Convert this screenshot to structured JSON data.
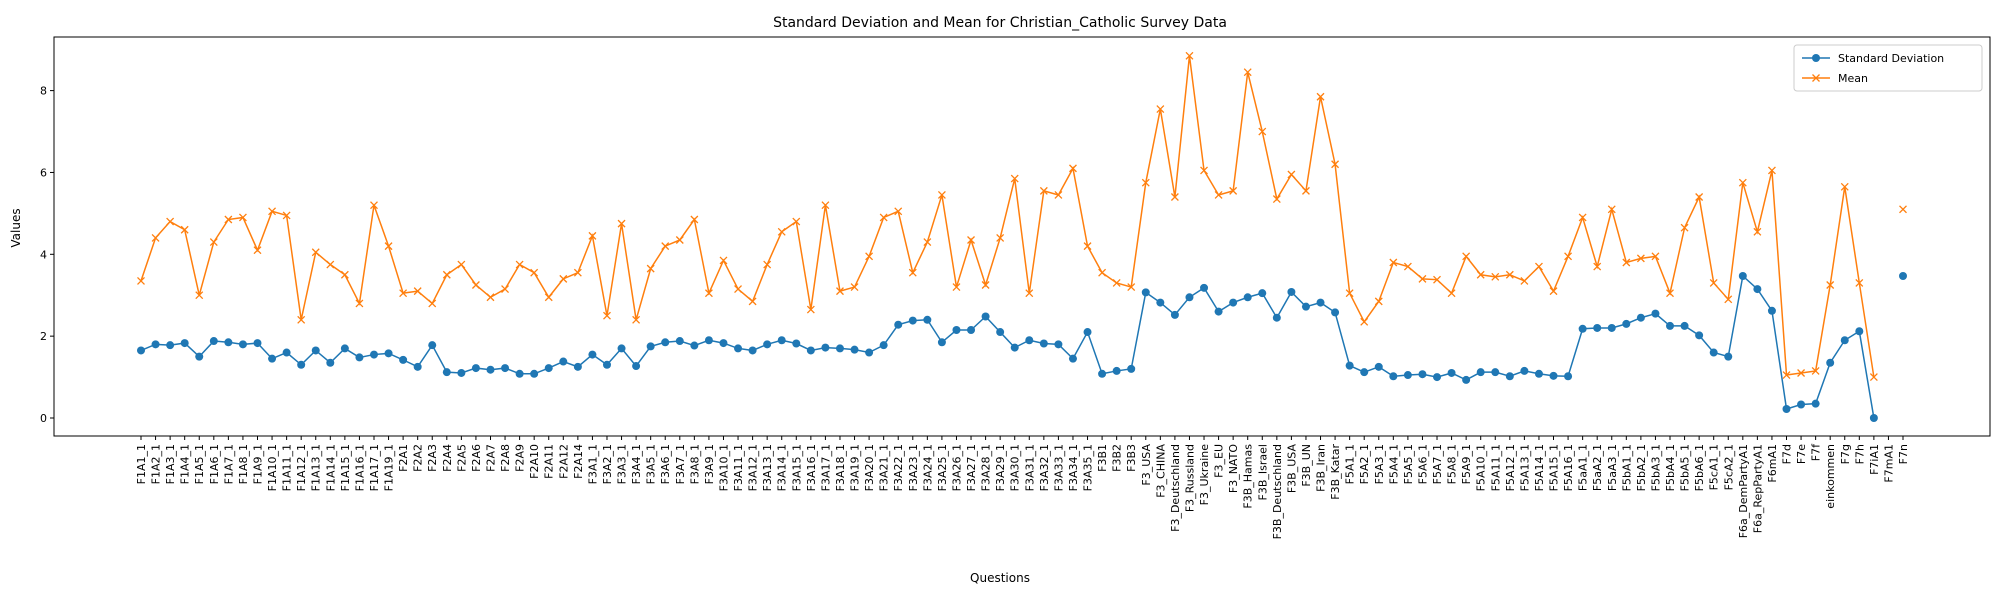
{
  "chart_data": {
    "type": "line",
    "title": "Standard Deviation and Mean for Christian_Catholic Survey Data",
    "xlabel": "Questions",
    "ylabel": "Values",
    "categories": [
      "F1A1_1",
      "F1A2_1",
      "F1A3_1",
      "F1A4_1",
      "F1A5_1",
      "F1A6_1",
      "F1A7_1",
      "F1A8_1",
      "F1A9_1",
      "F1A10_1",
      "F1A11_1",
      "F1A12_1",
      "F1A13_1",
      "F1A14_1",
      "F1A15_1",
      "F1A16_1",
      "F1A17_1",
      "F1A19_1",
      "F2A1",
      "F2A2",
      "F2A3",
      "F2A4",
      "F2A5",
      "F2A6",
      "F2A7",
      "F2A8",
      "F2A9",
      "F2A10",
      "F2A11",
      "F2A12",
      "F2A14",
      "F3A1_1",
      "F3A2_1",
      "F3A3_1",
      "F3A4_1",
      "F3A5_1",
      "F3A6_1",
      "F3A7_1",
      "F3A8_1",
      "F3A9_1",
      "F3A10_1",
      "F3A11_1",
      "F3A12_1",
      "F3A13_1",
      "F3A14_1",
      "F3A15_1",
      "F3A16_1",
      "F3A17_1",
      "F3A18_1",
      "F3A19_1",
      "F3A20_1",
      "F3A21_1",
      "F3A22_1",
      "F3A23_1",
      "F3A24_1",
      "F3A25_1",
      "F3A26_1",
      "F3A27_1",
      "F3A28_1",
      "F3A29_1",
      "F3A30_1",
      "F3A31_1",
      "F3A32_1",
      "F3A33_1",
      "F3A34_1",
      "F3A35_1",
      "F3B1",
      "F3B2",
      "F3B3",
      "F3_USA",
      "F3_CHINA",
      "F3_Deutschland",
      "F3_Russland",
      "F3_Ukraine",
      "F3_EU",
      "F3_NATO",
      "F3B_Hamas",
      "F3B_Israel",
      "F3B_Deutschland",
      "F3B_USA",
      "F3B_UN",
      "F3B_Iran",
      "F3B_Katar",
      "F5A1_1",
      "F5A2_1",
      "F5A3_1",
      "F5A4_1",
      "F5A5_1",
      "F5A6_1",
      "F5A7_1",
      "F5A8_1",
      "F5A9_1",
      "F5A10_1",
      "F5A11_1",
      "F5A12_1",
      "F5A13_1",
      "F5A14_1",
      "F5A15_1",
      "F5A16_1",
      "F5aA1_1",
      "F5aA2_1",
      "F5aA3_1",
      "F5bA1_1",
      "F5bA2_1",
      "F5bA3_1",
      "F5bA4_1",
      "F5bA5_1",
      "F5bA6_1",
      "F5cA1_1",
      "F5cA2_1",
      "F6a_DemPartyA1",
      "F6a_RepPartyA1",
      "F6mA1",
      "F7d",
      "F7e",
      "F7f",
      "einkommen",
      "F7g",
      "F7h",
      "F7iA1",
      "F7mA1",
      "F7n"
    ],
    "series": [
      {
        "name": "Standard Deviation",
        "color": "#1f77b4",
        "marker": "circle",
        "values": [
          1.65,
          1.8,
          1.78,
          1.83,
          1.5,
          1.88,
          1.85,
          1.8,
          1.83,
          1.45,
          1.6,
          1.3,
          1.65,
          1.35,
          1.7,
          1.48,
          1.55,
          1.58,
          1.42,
          1.25,
          1.78,
          1.12,
          1.1,
          1.22,
          1.18,
          1.22,
          1.08,
          1.08,
          1.22,
          1.38,
          1.25,
          1.55,
          1.3,
          1.7,
          1.27,
          1.75,
          1.85,
          1.88,
          1.77,
          1.9,
          1.83,
          1.7,
          1.65,
          1.8,
          1.9,
          1.82,
          1.65,
          1.72,
          1.7,
          1.67,
          1.6,
          1.78,
          2.28,
          2.38,
          2.4,
          1.85,
          2.15,
          2.15,
          2.48,
          2.1,
          1.72,
          1.9,
          1.82,
          1.8,
          1.45,
          2.1,
          1.08,
          1.15,
          1.2,
          3.07,
          2.82,
          2.52,
          2.95,
          3.18,
          2.6,
          2.82,
          2.95,
          3.05,
          2.45,
          3.08,
          2.72,
          2.82,
          2.58,
          1.28,
          1.12,
          1.25,
          1.02,
          1.05,
          1.07,
          1.0,
          1.1,
          0.93,
          1.12,
          1.12,
          1.02,
          1.15,
          1.08,
          1.03,
          1.02,
          2.18,
          2.2,
          2.2,
          2.3,
          2.45,
          2.55,
          2.25,
          2.25,
          2.02,
          1.6,
          1.5,
          3.47,
          3.15,
          2.62,
          0.22,
          0.33,
          0.35,
          1.35,
          1.9,
          2.12,
          0.0,
          null,
          3.47
        ]
      },
      {
        "name": "Mean",
        "color": "#ff7f0e",
        "marker": "x",
        "values": [
          3.35,
          4.4,
          4.8,
          4.6,
          3.0,
          4.3,
          4.85,
          4.9,
          4.1,
          5.05,
          4.95,
          2.4,
          4.05,
          3.75,
          3.5,
          2.8,
          5.2,
          4.2,
          3.05,
          3.1,
          2.8,
          3.5,
          3.75,
          3.25,
          2.95,
          3.15,
          3.75,
          3.55,
          2.95,
          3.4,
          3.55,
          4.45,
          2.5,
          4.75,
          2.4,
          3.65,
          4.2,
          4.35,
          4.85,
          3.05,
          3.85,
          3.15,
          2.85,
          3.75,
          4.55,
          4.8,
          2.65,
          5.2,
          3.1,
          3.2,
          3.95,
          4.9,
          5.05,
          3.55,
          4.3,
          5.45,
          3.2,
          4.35,
          3.25,
          4.4,
          5.85,
          3.05,
          5.55,
          5.45,
          6.1,
          4.2,
          3.55,
          3.3,
          3.2,
          5.75,
          7.55,
          5.4,
          8.85,
          6.05,
          5.45,
          5.55,
          8.45,
          7.0,
          5.35,
          5.95,
          5.55,
          7.85,
          6.2,
          3.05,
          2.35,
          2.85,
          3.8,
          3.7,
          3.4,
          3.38,
          3.05,
          3.95,
          3.5,
          3.45,
          3.5,
          3.35,
          3.7,
          3.1,
          3.95,
          4.9,
          3.7,
          5.1,
          3.8,
          3.9,
          3.95,
          3.05,
          4.65,
          5.4,
          3.3,
          2.9,
          5.75,
          4.55,
          6.05,
          1.05,
          1.1,
          1.15,
          3.25,
          5.65,
          3.3,
          1.0,
          null,
          5.1
        ]
      }
    ],
    "ylim": [
      -0.44,
      9.31
    ],
    "yticks": [
      0,
      2,
      4,
      6,
      8
    ],
    "legend": "upper right"
  }
}
